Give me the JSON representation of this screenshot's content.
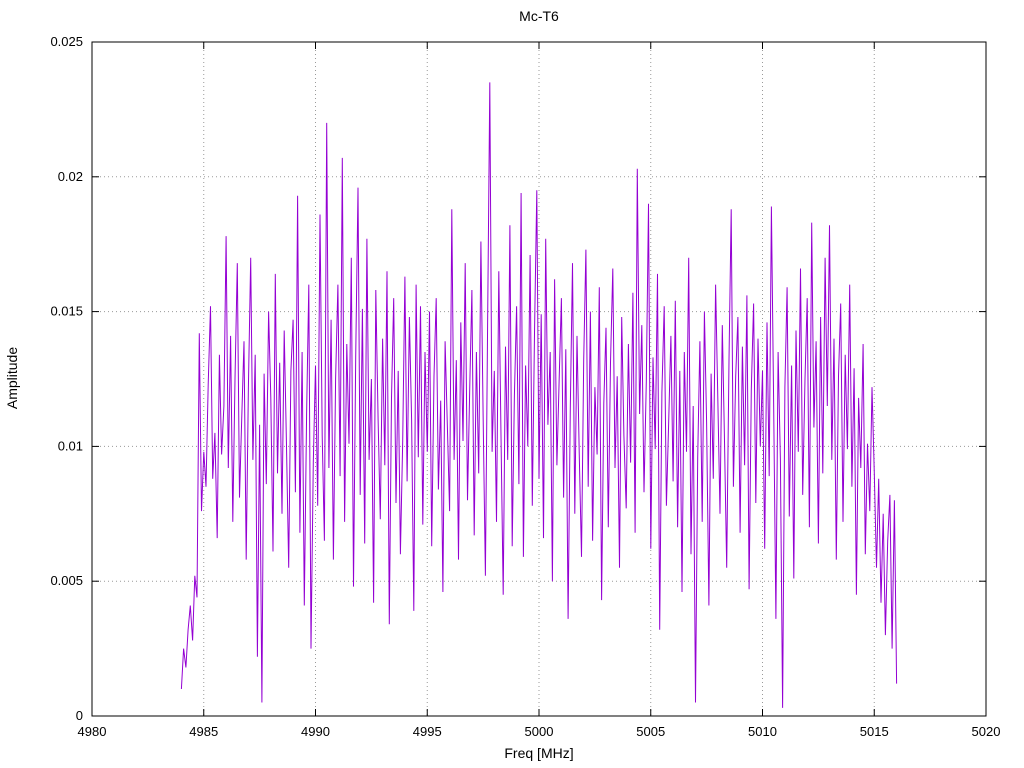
{
  "chart_data": {
    "type": "line",
    "title": "Mc-T6",
    "xlabel": "Freq [MHz]",
    "ylabel": "Amplitude",
    "xlim": [
      4980,
      5020
    ],
    "ylim": [
      0,
      0.025
    ],
    "grid": true,
    "legend": "none",
    "line_color": "#9400d3",
    "x_tick_values": [
      4980,
      4985,
      4990,
      4995,
      5000,
      5005,
      5010,
      5015,
      5020
    ],
    "x_tick_labels": [
      "4980",
      "4985",
      "4990",
      "4995",
      "5000",
      "5005",
      "5010",
      "5015",
      "5020"
    ],
    "y_tick_values": [
      0,
      0.005,
      0.01,
      0.015,
      0.02,
      0.025
    ],
    "y_tick_labels": [
      "0",
      "0.005",
      "0.01",
      "0.015",
      "0.02",
      "0.025"
    ],
    "x_start": 4984.0,
    "x_step": 0.1,
    "values": [
      0.001,
      0.0025,
      0.0018,
      0.0032,
      0.0041,
      0.0028,
      0.0052,
      0.0044,
      0.0142,
      0.0076,
      0.0098,
      0.0085,
      0.0123,
      0.0152,
      0.0088,
      0.0105,
      0.0066,
      0.0134,
      0.0097,
      0.0115,
      0.0178,
      0.0092,
      0.0141,
      0.0072,
      0.0125,
      0.0168,
      0.0081,
      0.011,
      0.0139,
      0.0058,
      0.0122,
      0.017,
      0.0095,
      0.0134,
      0.0022,
      0.0108,
      0.0005,
      0.0127,
      0.0086,
      0.015,
      0.0118,
      0.0061,
      0.0164,
      0.009,
      0.0131,
      0.0075,
      0.0143,
      0.0102,
      0.0055,
      0.0128,
      0.0147,
      0.0083,
      0.0193,
      0.0068,
      0.0135,
      0.0041,
      0.0112,
      0.016,
      0.0025,
      0.0094,
      0.013,
      0.0078,
      0.0186,
      0.0104,
      0.0065,
      0.022,
      0.0092,
      0.0147,
      0.0058,
      0.0125,
      0.016,
      0.0089,
      0.0207,
      0.0072,
      0.0138,
      0.0101,
      0.017,
      0.0048,
      0.0133,
      0.0196,
      0.0082,
      0.0151,
      0.0064,
      0.0177,
      0.0095,
      0.0125,
      0.0042,
      0.0158,
      0.011,
      0.0073,
      0.014,
      0.0093,
      0.0165,
      0.0034,
      0.0118,
      0.0155,
      0.0079,
      0.0128,
      0.006,
      0.0102,
      0.0163,
      0.0087,
      0.0148,
      0.011,
      0.0039,
      0.016,
      0.0096,
      0.0152,
      0.0071,
      0.0135,
      0.0098,
      0.015,
      0.0063,
      0.0126,
      0.0155,
      0.0084,
      0.0117,
      0.0046,
      0.0139,
      0.0107,
      0.0076,
      0.0188,
      0.0095,
      0.0132,
      0.0058,
      0.0146,
      0.0102,
      0.0168,
      0.008,
      0.0121,
      0.0158,
      0.0067,
      0.0135,
      0.009,
      0.0176,
      0.0112,
      0.0052,
      0.0145,
      0.0235,
      0.0098,
      0.0128,
      0.0072,
      0.0165,
      0.0104,
      0.0045,
      0.0137,
      0.0095,
      0.0182,
      0.0063,
      0.0119,
      0.0152,
      0.0086,
      0.0194,
      0.0059,
      0.013,
      0.01,
      0.0171,
      0.0078,
      0.0142,
      0.0195,
      0.0088,
      0.0149,
      0.0066,
      0.0177,
      0.0108,
      0.0135,
      0.005,
      0.0162,
      0.0093,
      0.0124,
      0.0155,
      0.0081,
      0.0136,
      0.0036,
      0.0114,
      0.0168,
      0.0075,
      0.0141,
      0.0098,
      0.0059,
      0.0132,
      0.0173,
      0.0085,
      0.015,
      0.0065,
      0.0122,
      0.0097,
      0.0159,
      0.0043,
      0.0116,
      0.0144,
      0.007,
      0.0131,
      0.0166,
      0.0092,
      0.0126,
      0.0055,
      0.0148,
      0.0104,
      0.0077,
      0.0138,
      0.0094,
      0.0157,
      0.0068,
      0.0203,
      0.0112,
      0.0145,
      0.0083,
      0.0124,
      0.019,
      0.0062,
      0.0133,
      0.0099,
      0.0164,
      0.0032,
      0.012,
      0.0152,
      0.0078,
      0.0108,
      0.0141,
      0.0087,
      0.0154,
      0.007,
      0.0128,
      0.0046,
      0.0135,
      0.0098,
      0.017,
      0.006,
      0.0115,
      0.0005,
      0.0096,
      0.0139,
      0.0072,
      0.015,
      0.0109,
      0.0041,
      0.0127,
      0.0088,
      0.016,
      0.0118,
      0.0075,
      0.0145,
      0.0102,
      0.0055,
      0.0132,
      0.0188,
      0.0085,
      0.0126,
      0.0148,
      0.0068,
      0.0137,
      0.0093,
      0.0156,
      0.0047,
      0.0121,
      0.0153,
      0.0079,
      0.014,
      0.01,
      0.0128,
      0.0062,
      0.0146,
      0.0089,
      0.0189,
      0.0114,
      0.0036,
      0.0135,
      0.0095,
      0.0003,
      0.0122,
      0.0159,
      0.0074,
      0.013,
      0.0051,
      0.0143,
      0.0098,
      0.0166,
      0.0082,
      0.0125,
      0.0155,
      0.007,
      0.0183,
      0.0107,
      0.0139,
      0.0064,
      0.0148,
      0.009,
      0.017,
      0.0115,
      0.0182,
      0.0095,
      0.014,
      0.0058,
      0.0126,
      0.0153,
      0.0072,
      0.0134,
      0.0099,
      0.016,
      0.0085,
      0.0129,
      0.0045,
      0.0118,
      0.0092,
      0.0138,
      0.006,
      0.0101,
      0.0076,
      0.0122,
      0.009,
      0.0055,
      0.0088,
      0.0042,
      0.0075,
      0.003,
      0.0065,
      0.0082,
      0.0025,
      0.008,
      0.0012
    ]
  }
}
